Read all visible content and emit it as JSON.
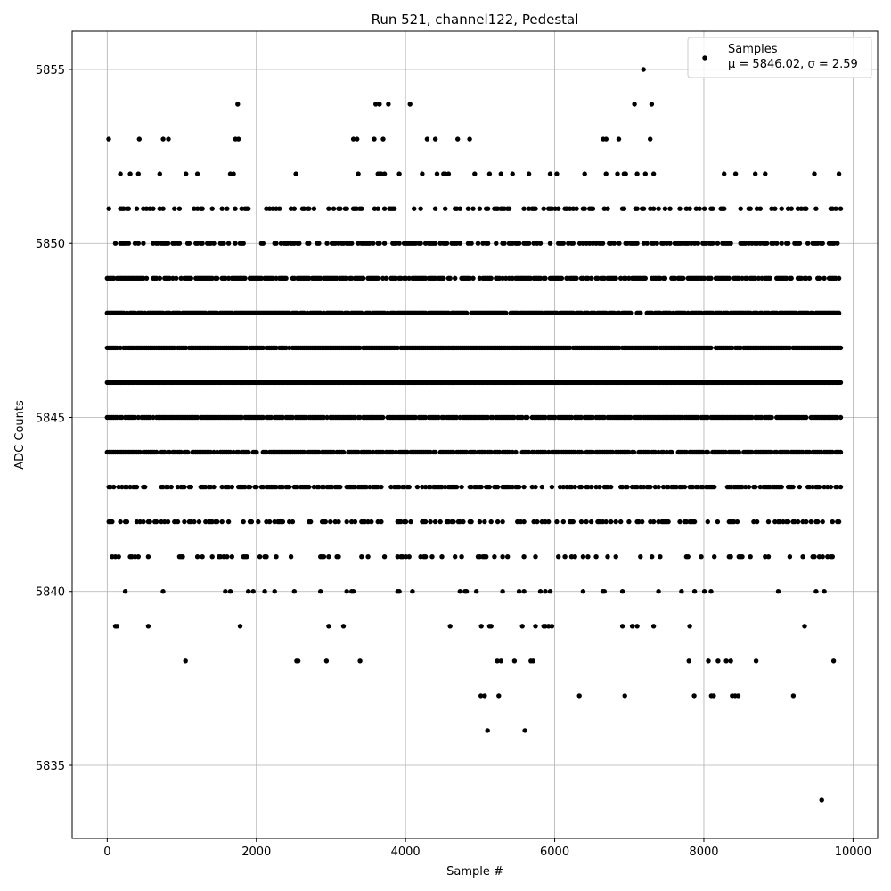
{
  "chart_data": {
    "type": "scatter",
    "title": "Run 521, channel122, Pedestal",
    "xlabel": "Sample #",
    "ylabel": "ADC Counts",
    "xlim": [
      -470,
      10330
    ],
    "ylim": [
      5832.9,
      5856.1
    ],
    "xticks": [
      0,
      2000,
      4000,
      6000,
      8000,
      10000
    ],
    "yticks": [
      5835,
      5840,
      5845,
      5850,
      5855
    ],
    "xtick_labels": [
      "0",
      "2000",
      "4000",
      "6000",
      "8000",
      "10000"
    ],
    "ytick_labels": [
      "5835",
      "5840",
      "5845",
      "5850",
      "5855"
    ],
    "grid": true,
    "legend": {
      "position": "top-right",
      "entries": [
        {
          "name": "Samples",
          "stat_line": "μ = 5846.02, σ = 2.59"
        }
      ]
    },
    "marker_color": "#000000",
    "series": [
      {
        "name": "Samples",
        "bands": [
          {
            "y": 5846,
            "x_ranges": [
              [
                0,
                9850
              ]
            ],
            "density": 1.0
          },
          {
            "y": 5847,
            "x_ranges": [
              [
                0,
                9850
              ]
            ],
            "density": 0.95
          },
          {
            "y": 5845,
            "x_ranges": [
              [
                0,
                9850
              ]
            ],
            "density": 0.9
          },
          {
            "y": 5848,
            "x_ranges": [
              [
                0,
                9850
              ]
            ],
            "density": 0.85
          },
          {
            "y": 5844,
            "x_ranges": [
              [
                0,
                9850
              ]
            ],
            "density": 0.8
          },
          {
            "y": 5849,
            "x_ranges": [
              [
                0,
                9850
              ]
            ],
            "density": 0.7
          },
          {
            "y": 5843,
            "x_ranges": [
              [
                0,
                9850
              ]
            ],
            "density": 0.55
          },
          {
            "y": 5850,
            "x_ranges": [
              [
                0,
                9850
              ]
            ],
            "density": 0.5
          },
          {
            "y": 5842,
            "x_ranges": [
              [
                0,
                9850
              ]
            ],
            "density": 0.35
          },
          {
            "y": 5851,
            "x_ranges": [
              [
                0,
                9850
              ]
            ],
            "density": 0.3
          },
          {
            "y": 5841,
            "x_ranges": [
              [
                0,
                9850
              ]
            ],
            "density": 0.2
          },
          {
            "y": 5852,
            "x_ranges": [
              [
                0,
                9850
              ]
            ],
            "density": 0.1
          },
          {
            "y": 5840,
            "x_ranges": [
              [
                0,
                9850
              ]
            ],
            "density": 0.12
          },
          {
            "y": 5839,
            "x_ranges": [
              [
                0,
                9850
              ]
            ],
            "density": 0.06
          }
        ],
        "points": [
          [
            20,
            5853
          ],
          [
            430,
            5853
          ],
          [
            750,
            5853
          ],
          [
            820,
            5853
          ],
          [
            1720,
            5853
          ],
          [
            1760,
            5853
          ],
          [
            3300,
            5853
          ],
          [
            3350,
            5853
          ],
          [
            3580,
            5853
          ],
          [
            3700,
            5853
          ],
          [
            4290,
            5853
          ],
          [
            4400,
            5853
          ],
          [
            4700,
            5853
          ],
          [
            4860,
            5853
          ],
          [
            6650,
            5853
          ],
          [
            6690,
            5853
          ],
          [
            6860,
            5853
          ],
          [
            7280,
            5853
          ],
          [
            1750,
            5854
          ],
          [
            3600,
            5854
          ],
          [
            3650,
            5854
          ],
          [
            3770,
            5854
          ],
          [
            4060,
            5854
          ],
          [
            7070,
            5854
          ],
          [
            7300,
            5854
          ],
          [
            7190,
            5855
          ],
          [
            1050,
            5838
          ],
          [
            2540,
            5838
          ],
          [
            2560,
            5838
          ],
          [
            2940,
            5838
          ],
          [
            3390,
            5838
          ],
          [
            5230,
            5838
          ],
          [
            5280,
            5838
          ],
          [
            5460,
            5838
          ],
          [
            5680,
            5838
          ],
          [
            5710,
            5838
          ],
          [
            7800,
            5838
          ],
          [
            8060,
            5838
          ],
          [
            8190,
            5838
          ],
          [
            8300,
            5838
          ],
          [
            8360,
            5838
          ],
          [
            8700,
            5838
          ],
          [
            9740,
            5838
          ],
          [
            5010,
            5837
          ],
          [
            5060,
            5837
          ],
          [
            5250,
            5837
          ],
          [
            6330,
            5837
          ],
          [
            6940,
            5837
          ],
          [
            7870,
            5837
          ],
          [
            8100,
            5837
          ],
          [
            8130,
            5837
          ],
          [
            8380,
            5837
          ],
          [
            8420,
            5837
          ],
          [
            8460,
            5837
          ],
          [
            9200,
            5837
          ],
          [
            5100,
            5836
          ],
          [
            5600,
            5836
          ],
          [
            9580,
            5834
          ]
        ]
      }
    ]
  }
}
